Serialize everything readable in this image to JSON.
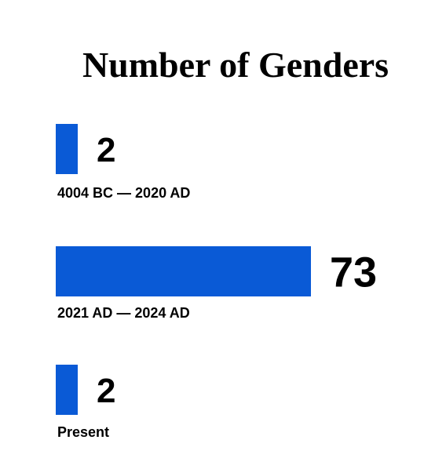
{
  "chart_data": {
    "type": "bar",
    "orientation": "horizontal",
    "title": "Number of Genders",
    "categories": [
      "4004 BC — 2020 AD",
      "2021 AD — 2024 AD",
      "Present"
    ],
    "values": [
      2,
      73,
      2
    ],
    "value_labels": [
      "2",
      "73",
      "2"
    ],
    "bar_color": "#0a5ad6",
    "xlabel": "",
    "ylabel": "",
    "grid": false,
    "legend": "none"
  }
}
